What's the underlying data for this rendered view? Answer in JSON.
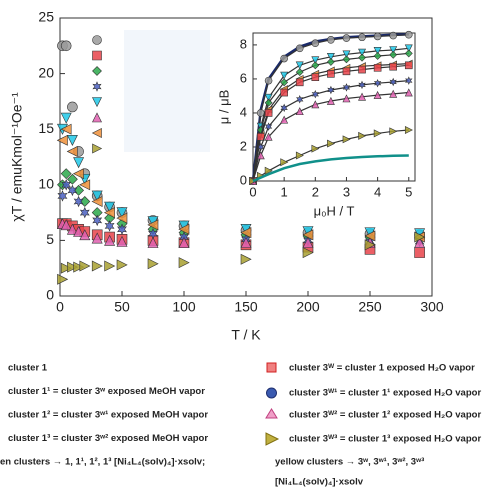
{
  "chart_data": [
    {
      "type": "scatter",
      "ylabel": "χT / emuKmol⁻¹Oe⁻¹",
      "xlabel": "T / K",
      "x": [
        2,
        5,
        10,
        15,
        20,
        30,
        40,
        50,
        75,
        100,
        150,
        200,
        250,
        290
      ],
      "xlim": [
        0,
        300
      ],
      "xticks": [
        0,
        50,
        100,
        150,
        200,
        250,
        300
      ],
      "ylim": [
        0,
        25
      ],
      "yticks": [
        0,
        5,
        10,
        15,
        20,
        25
      ],
      "series": [
        {
          "color": "#9a9a9a",
          "marker": "circle",
          "values": [
            22.5,
            22.5,
            17,
            13,
            11,
            9,
            8,
            7.5,
            6.8,
            6.3,
            5.9,
            5.7,
            5.6,
            5.5
          ]
        },
        {
          "color": "#e8434a",
          "marker": "square",
          "values": [
            6.5,
            6.5,
            6.3,
            6,
            5.8,
            5.5,
            5.3,
            5.1,
            5,
            4.8,
            4.6,
            4.4,
            4.2,
            3.9
          ]
        },
        {
          "color": "#2aa84a",
          "marker": "diamond",
          "values": [
            10,
            11,
            10.5,
            9.5,
            8.5,
            7.5,
            7,
            6.5,
            6,
            5.7,
            5.5,
            5.4,
            5.3,
            5.2
          ]
        },
        {
          "color": "#4a5fc1",
          "marker": "star",
          "values": [
            9,
            10,
            9.5,
            8.5,
            7.5,
            6.8,
            6.3,
            6,
            5.6,
            5.3,
            5.1,
            5,
            4.9,
            4.9
          ]
        },
        {
          "color": "#1fc8e8",
          "marker": "triangle-down",
          "values": [
            15,
            16,
            14,
            12,
            10.5,
            9,
            8,
            7.5,
            6.7,
            6.3,
            6,
            5.8,
            5.7,
            5.6
          ]
        },
        {
          "color": "#e060b0",
          "marker": "triangle-up",
          "values": [
            6.5,
            6.4,
            6,
            5.8,
            5.5,
            5.2,
            5,
            4.9,
            4.8,
            4.8,
            4.8,
            4.8,
            4.8,
            4.8
          ]
        },
        {
          "color": "#f0903a",
          "marker": "triangle-left",
          "values": [
            14,
            15,
            13,
            11,
            10,
            8.5,
            7.5,
            7,
            6.4,
            6,
            5.7,
            5.5,
            5.4,
            5.3
          ]
        },
        {
          "color": "#a8a030",
          "marker": "triangle-right",
          "values": [
            1.5,
            2.5,
            2.6,
            2.6,
            2.7,
            2.7,
            2.7,
            2.8,
            2.9,
            3.0,
            3.3,
            3.9,
            4.6,
            5.3
          ]
        }
      ]
    },
    {
      "type": "line",
      "ylabel": "μ / μB",
      "xlabel": "μ₀H / T",
      "x": [
        0,
        0.25,
        0.5,
        1,
        1.5,
        2,
        2.5,
        3,
        3.5,
        4,
        4.5,
        5
      ],
      "xlim": [
        0,
        5.2
      ],
      "xticks": [
        0,
        1,
        2,
        3,
        4,
        5
      ],
      "ylim": [
        0,
        8.7
      ],
      "yticks": [
        0,
        2,
        4,
        6,
        8
      ],
      "series": [
        {
          "color": "#1a2a6a",
          "marker": "none",
          "values": [
            0,
            4.2,
            6,
            7.3,
            7.9,
            8.2,
            8.35,
            8.45,
            8.5,
            8.55,
            8.6,
            8.62
          ]
        },
        {
          "color": "#9a9a9a",
          "marker": "circle",
          "values": [
            0,
            4,
            5.9,
            7.2,
            7.8,
            8.1,
            8.3,
            8.4,
            8.45,
            8.5,
            8.55,
            8.6
          ]
        },
        {
          "color": "#1fc8e8",
          "marker": "triangle-down",
          "values": [
            0,
            3.2,
            4.9,
            6.2,
            6.8,
            7.1,
            7.3,
            7.45,
            7.55,
            7.65,
            7.7,
            7.8
          ]
        },
        {
          "color": "#2aa84a",
          "marker": "diamond",
          "values": [
            0,
            3,
            4.6,
            5.8,
            6.4,
            6.8,
            7,
            7.15,
            7.25,
            7.35,
            7.42,
            7.5
          ]
        },
        {
          "color": "#f0903a",
          "marker": "triangle-left",
          "values": [
            0,
            2.7,
            4.2,
            5.4,
            6,
            6.3,
            6.5,
            6.65,
            6.75,
            6.8,
            6.85,
            6.9
          ]
        },
        {
          "color": "#e8434a",
          "marker": "square",
          "values": [
            0,
            2.6,
            4,
            5.2,
            5.8,
            6.1,
            6.3,
            6.45,
            6.55,
            6.65,
            6.72,
            6.8
          ]
        },
        {
          "color": "#4a5fc1",
          "marker": "star",
          "values": [
            0,
            2,
            3.2,
            4.3,
            4.8,
            5.1,
            5.35,
            5.5,
            5.65,
            5.75,
            5.82,
            5.9
          ]
        },
        {
          "color": "#e060b0",
          "marker": "triangle-up",
          "values": [
            0,
            1.5,
            2.6,
            3.6,
            4.1,
            4.5,
            4.7,
            4.85,
            4.95,
            5.05,
            5.12,
            5.2
          ]
        },
        {
          "color": "#a8a030",
          "marker": "triangle-right",
          "values": [
            0,
            0.3,
            0.6,
            1.1,
            1.5,
            1.9,
            2.2,
            2.45,
            2.65,
            2.8,
            2.92,
            3.0
          ]
        },
        {
          "color": "#10908a",
          "marker": "none",
          "values": [
            0,
            0.2,
            0.4,
            0.75,
            1,
            1.15,
            1.27,
            1.35,
            1.41,
            1.45,
            1.48,
            1.5
          ]
        }
      ]
    }
  ],
  "notes": {
    "left": [
      "cluster 1",
      "cluster 1¹ = cluster 3ʷ exposed MeOH vapor",
      "cluster 1² =  cluster 3ʷ¹ exposed MeOH vapor",
      "cluster 1³  = cluster 3ʷ² exposed MeOH vapor",
      "en clusters → 1, 1¹, 1², 1³ [Ni₄L₄(solv)₄]·xsolv;"
    ],
    "right": [
      "cluster 3ᵂ = cluster 1 exposed H₂O vapor",
      "cluster 3ᵂ¹ =  cluster 1¹ exposed H₂O vapor",
      "cluster 3ᵂ² = cluster 1² exposed H₂O vapor",
      "cluster 3ᵂ³ = cluster 1³ exposed H₂O vapor",
      "yellow clusters → 3ʷ, 3ʷ¹, 3ʷ², 3ʷ³",
      "[Ni₄L₄(solv)₄]·xsolv"
    ]
  }
}
